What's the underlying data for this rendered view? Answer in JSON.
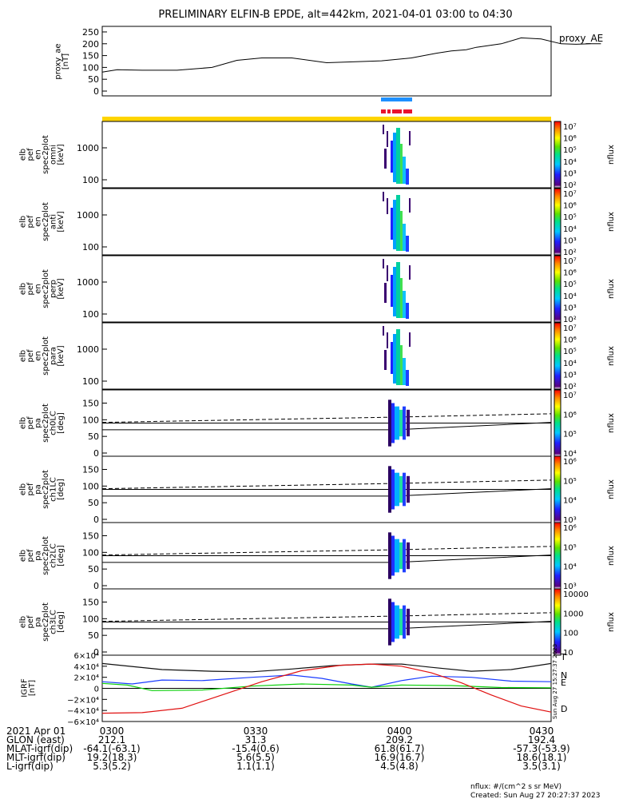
{
  "title": "PRELIMINARY ELFIN-B EPDE, alt=442km, 2021-04-01 03:00 to 04:30",
  "colors": {
    "fast_bar": "#1e90ff",
    "sci_zone_bar": "#e8112d",
    "sci_marker_bar": "#e8112d",
    "yellow_bar": "#ffd400",
    "igrf_x": "#111111",
    "igrf_y": "#1a3cff",
    "igrf_z": "#e01010",
    "igrf_d": "#0bd00b"
  },
  "panels": {
    "ae": {
      "ylabel": [
        "proxy_ae",
        "[nT]"
      ],
      "yticks": [
        "250",
        "200",
        "150",
        "100",
        "50",
        "0"
      ],
      "right_label": "proxy_AE"
    },
    "spec": [
      {
        "ylabel": [
          "elb",
          "pef",
          "en",
          "spec2plot",
          "omni",
          "[keV]"
        ],
        "yticks": [
          "1000",
          "100"
        ]
      },
      {
        "ylabel": [
          "elb",
          "pef",
          "en",
          "spec2plot",
          "anti",
          "[keV]"
        ],
        "yticks": [
          "1000",
          "100"
        ]
      },
      {
        "ylabel": [
          "elb",
          "pef",
          "en",
          "spec2plot",
          "perp",
          "[keV]"
        ],
        "yticks": [
          "1000",
          "100"
        ]
      },
      {
        "ylabel": [
          "elb",
          "pef",
          "en",
          "spec2plot",
          "para",
          "[keV]"
        ],
        "yticks": [
          "1000",
          "100"
        ]
      }
    ],
    "pa": [
      {
        "ylabel": [
          "elb",
          "pef",
          "pa",
          "spec2plot",
          "ch0LC",
          "[deg]"
        ],
        "yticks": [
          "150",
          "100",
          "50",
          "0"
        ]
      },
      {
        "ylabel": [
          "elb",
          "pef",
          "pa",
          "spec2plot",
          "ch1LC",
          "[deg]"
        ],
        "yticks": [
          "150",
          "100",
          "50",
          "0"
        ]
      },
      {
        "ylabel": [
          "elb",
          "pef",
          "pa",
          "spec2plot",
          "ch2LC",
          "[deg]"
        ],
        "yticks": [
          "150",
          "100",
          "50",
          "0"
        ]
      },
      {
        "ylabel": [
          "elb",
          "pef",
          "pa",
          "spec2plot",
          "ch3LC",
          "[deg]"
        ],
        "yticks": [
          "150",
          "100",
          "50",
          "0"
        ]
      }
    ],
    "igrf": {
      "ylabel": [
        "IGRF",
        "[nT]"
      ],
      "yticks": [
        "6×10⁴",
        "4×10⁴",
        "2×10⁴",
        "0",
        "−2×10⁴",
        "−4×10⁴",
        "−6×10⁴"
      ],
      "legend": [
        "T",
        "N",
        "E",
        "D"
      ]
    }
  },
  "colorbars": [
    {
      "label": "nflux",
      "ticks": [
        "10⁷",
        "10⁶",
        "10⁵",
        "10⁴",
        "10³",
        "10²"
      ]
    },
    {
      "label": "nflux",
      "ticks": [
        "10⁷",
        "10⁶",
        "10⁵",
        "10⁴",
        "10³",
        "10²"
      ]
    },
    {
      "label": "nflux",
      "ticks": [
        "10⁷",
        "10⁶",
        "10⁵",
        "10⁴",
        "10³",
        "10²"
      ]
    },
    {
      "label": "nflux",
      "ticks": [
        "10⁷",
        "10⁶",
        "10⁵",
        "10⁴",
        "10³",
        "10²"
      ]
    },
    {
      "label": "nflux",
      "ticks": [
        "10⁷",
        "10⁶",
        "10⁵",
        "10⁴"
      ]
    },
    {
      "label": "nflux",
      "ticks": [
        "10⁶",
        "10⁵",
        "10⁴",
        "10³"
      ]
    },
    {
      "label": "nflux",
      "ticks": [
        "10⁶",
        "10⁵",
        "10⁴",
        "10³"
      ]
    },
    {
      "label": "nflux",
      "ticks": [
        "10000",
        "1000",
        "100",
        "10"
      ]
    }
  ],
  "footer": {
    "rows": [
      {
        "label": "2021 Apr 01",
        "values": [
          "0300",
          "0330",
          "0400",
          "0430"
        ]
      },
      {
        "label": "GLON (east)",
        "values": [
          "212.1",
          "31.3",
          "209.2",
          "192.4"
        ]
      },
      {
        "label": "MLAT-igrf(dip)",
        "values": [
          "-64.1(-63.1)",
          "-15.4(0.6)",
          "61.8(61.7)",
          "-57.3(-53.9)"
        ]
      },
      {
        "label": "MLT-igrf(dip)",
        "values": [
          "19.2(18.3)",
          "5.6(5.5)",
          "16.9(16.7)",
          "18.6(18.1)"
        ]
      },
      {
        "label": "L-igrf(dip)",
        "values": [
          "5.3(5.2)",
          "1.1(1.1)",
          "4.5(4.8)",
          "3.5(3.1)"
        ]
      }
    ],
    "units_note": "nflux: #/(cm^2 s sr MeV)",
    "created": "Created: Sun Aug 27 20:27:37 2023",
    "side_stamp": "Sun Aug 27 15:27:37 2023"
  },
  "chart_data": [
    {
      "type": "line",
      "title": "proxy_AE",
      "x_range": [
        "03:00",
        "04:30"
      ],
      "ylim": [
        0,
        260
      ],
      "x_minutes": [
        0,
        3,
        8,
        15,
        22,
        27,
        32,
        38,
        45,
        52,
        56,
        62,
        67,
        70,
        73,
        75,
        80,
        84,
        88,
        92,
        95,
        98,
        100
      ],
      "y": [
        80,
        90,
        88,
        88,
        100,
        130,
        140,
        140,
        120,
        125,
        128,
        140,
        160,
        170,
        175,
        185,
        200,
        225,
        220,
        200,
        198,
        200,
        200
      ]
    },
    {
      "type": "line",
      "title": "IGRF",
      "x_range": [
        "03:00",
        "04:30"
      ],
      "ylim": [
        -60000,
        60000
      ],
      "series": [
        {
          "name": "T",
          "x_minutes": [
            0,
            12,
            22,
            30,
            38,
            46,
            54,
            60,
            66,
            74,
            82,
            90
          ],
          "values": [
            45000,
            34000,
            31000,
            30000,
            35000,
            41000,
            44000,
            44000,
            38000,
            31000,
            34000,
            45000
          ]
        },
        {
          "name": "N",
          "x_minutes": [
            0,
            6,
            12,
            20,
            30,
            38,
            44,
            50,
            54,
            60,
            66,
            74,
            82,
            90
          ],
          "values": [
            12000,
            8000,
            15000,
            14000,
            20000,
            24000,
            18000,
            8000,
            2000,
            14000,
            22000,
            20000,
            13000,
            12000
          ]
        },
        {
          "name": "E",
          "x_minutes": [
            0,
            5,
            10,
            20,
            30,
            40,
            50,
            54,
            60,
            70,
            80,
            90
          ],
          "values": [
            9000,
            6000,
            -4000,
            -3000,
            4000,
            8000,
            6000,
            2000,
            6000,
            5000,
            1500,
            1000
          ]
        },
        {
          "name": "D",
          "x_minutes": [
            0,
            8,
            16,
            24,
            32,
            40,
            48,
            54,
            60,
            66,
            72,
            78,
            84,
            90
          ],
          "values": [
            -45000,
            -44000,
            -36000,
            -12000,
            12000,
            32000,
            42000,
            44000,
            40000,
            28000,
            10000,
            -12000,
            -32000,
            -43000
          ]
        }
      ]
    }
  ]
}
